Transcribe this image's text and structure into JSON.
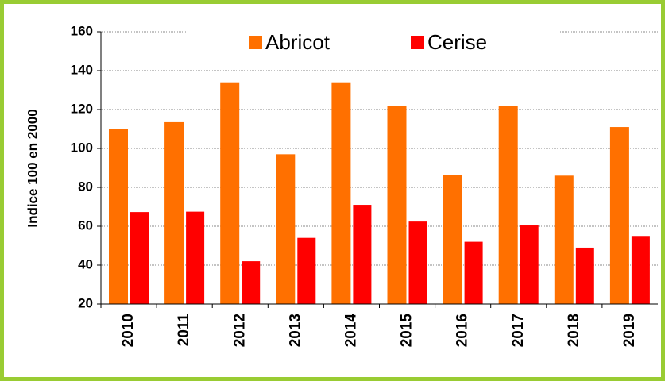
{
  "chart_data": {
    "type": "bar",
    "y_label": "Indice 100 en 2000",
    "categories": [
      "2010",
      "2011",
      "2012",
      "2013",
      "2014",
      "2015",
      "2016",
      "2017",
      "2018",
      "2019"
    ],
    "series": [
      {
        "name": "Abricot",
        "color": "#ff7000",
        "values": [
          110,
          113.5,
          134,
          97,
          134,
          122,
          86.5,
          122,
          86,
          111
        ]
      },
      {
        "name": "Cerise",
        "color": "#ff0000",
        "values": [
          67.3,
          67.5,
          42,
          54,
          71,
          62.4,
          52,
          60.4,
          49,
          55
        ]
      }
    ],
    "ylim": [
      20,
      160
    ],
    "yticks": [
      20,
      40,
      60,
      80,
      100,
      120,
      140,
      160
    ],
    "grid": true,
    "legend": "top"
  }
}
